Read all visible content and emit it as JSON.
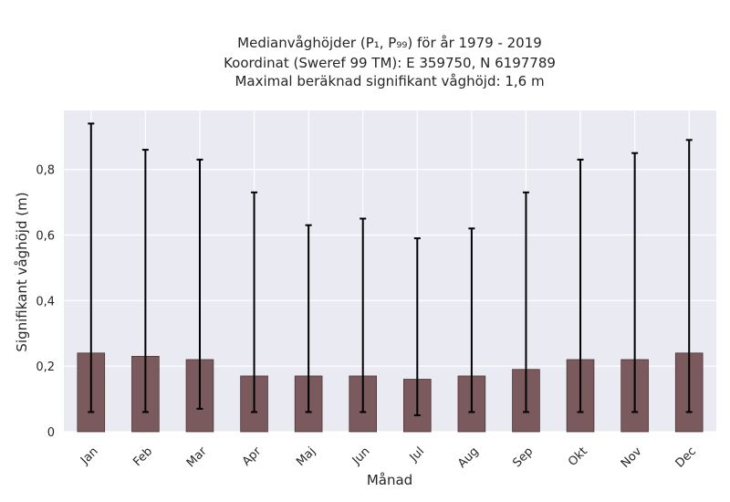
{
  "chart_data": {
    "type": "bar",
    "title_lines": [
      "Medianvåghöjder (P₁, P₉₉) för år 1979 - 2019",
      "Koordinat (Sweref 99 TM): E 359750, N 6197789",
      "Maximal beräknad signifikant våghöjd: 1,6 m"
    ],
    "xlabel": "Månad",
    "ylabel": "Signifikant våghöjd (m)",
    "categories": [
      "Jan",
      "Feb",
      "Mar",
      "Apr",
      "Maj",
      "Jun",
      "Jul",
      "Aug",
      "Sep",
      "Okt",
      "Nov",
      "Dec"
    ],
    "values": [
      0.24,
      0.23,
      0.22,
      0.17,
      0.17,
      0.17,
      0.16,
      0.17,
      0.19,
      0.22,
      0.22,
      0.24
    ],
    "error_low": [
      0.06,
      0.06,
      0.07,
      0.06,
      0.06,
      0.06,
      0.05,
      0.06,
      0.06,
      0.06,
      0.06,
      0.06
    ],
    "error_high": [
      0.94,
      0.86,
      0.83,
      0.73,
      0.63,
      0.65,
      0.59,
      0.62,
      0.73,
      0.83,
      0.85,
      0.89
    ],
    "yticks": [
      0,
      0.2,
      0.4,
      0.6,
      0.8
    ],
    "ytick_labels": [
      "0",
      "0,2",
      "0,4",
      "0,6",
      "0,8"
    ],
    "ylim": [
      0,
      0.98
    ],
    "grid": true,
    "colors": {
      "bar": "#7a5a5c",
      "bar_edge": "#4a3436",
      "error": "#000000",
      "plot_bg": "#eaeaf2",
      "grid": "#ffffff"
    }
  }
}
